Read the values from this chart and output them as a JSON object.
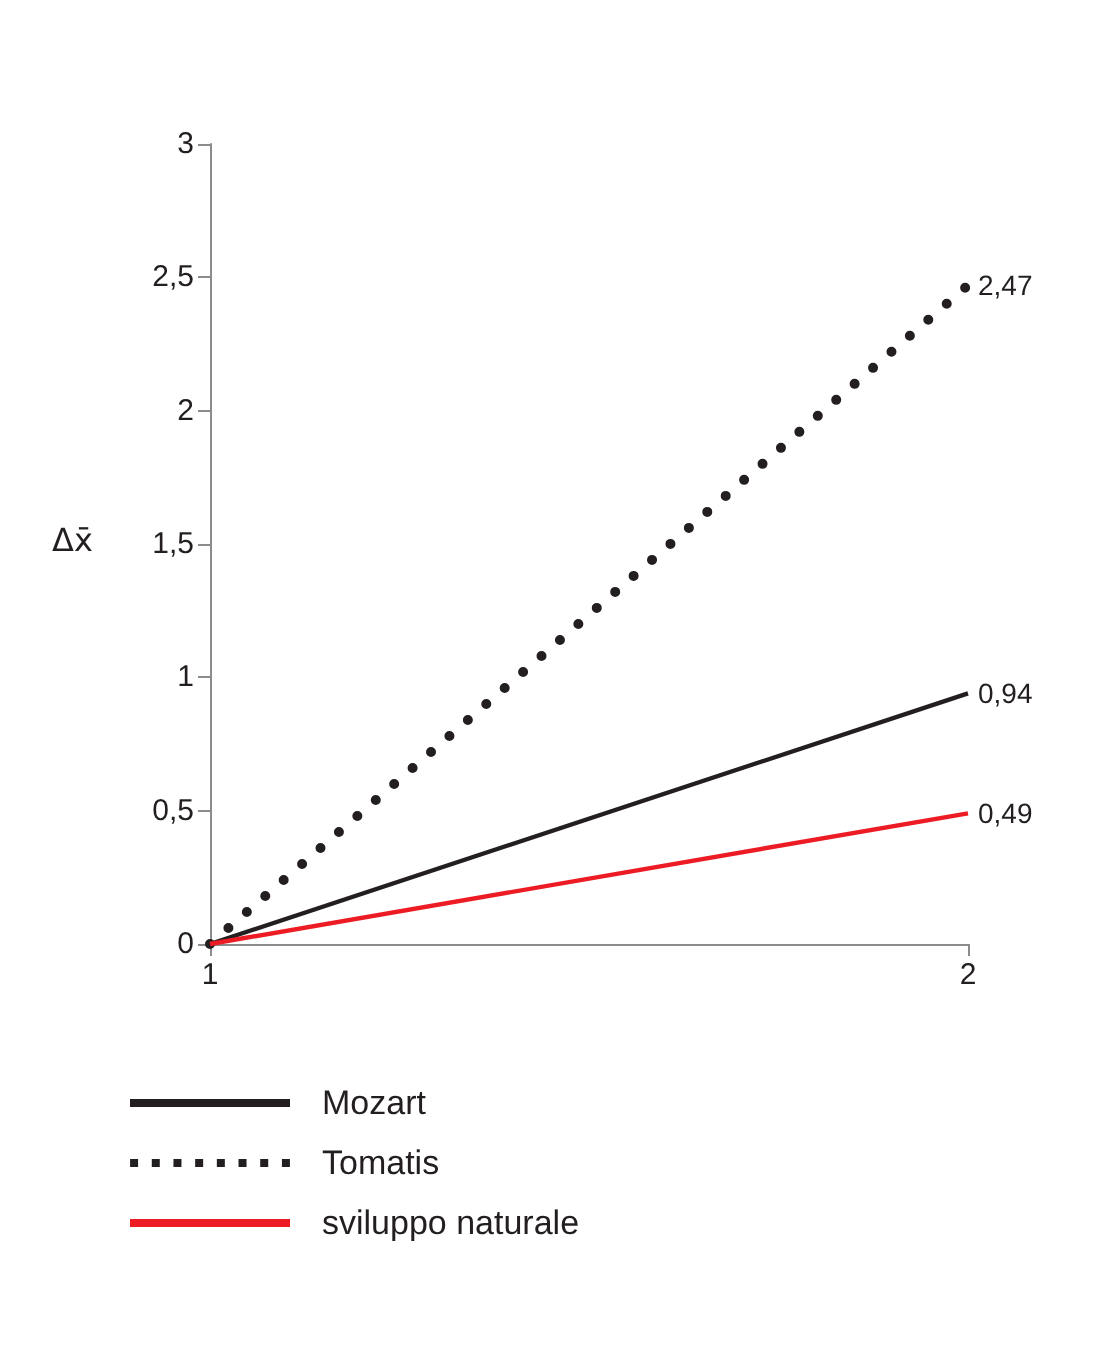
{
  "chart_data": {
    "type": "line",
    "ylabel": "Δx̄",
    "x": [
      1,
      2
    ],
    "xlim": [
      1,
      2
    ],
    "xticks": [
      1,
      2
    ],
    "ylim": [
      0,
      3
    ],
    "yticks": [
      0,
      {
        "value": 0.5,
        "label": "0,5"
      },
      1,
      {
        "value": 1.5,
        "label": "1,5"
      },
      2,
      {
        "value": 2.5,
        "label": "2,5"
      },
      3
    ],
    "grid": false,
    "legend": "bottom left",
    "marker": "none",
    "series": [
      {
        "name": "Mozart",
        "color": "#231f20",
        "values": [
          0,
          0.94
        ],
        "value_labels": [
          null,
          "0,94"
        ],
        "line_style": "solid"
      },
      {
        "name": "Tomatis",
        "color": "#231f20",
        "values": [
          0,
          2.47
        ],
        "value_labels": [
          null,
          "2,47"
        ],
        "line_style": "dotted"
      },
      {
        "name": "sviluppo naturale",
        "color": "#ed1c24",
        "values": [
          0,
          0.49
        ],
        "value_labels": [
          null,
          "0,49"
        ],
        "line_style": "solid"
      }
    ]
  }
}
